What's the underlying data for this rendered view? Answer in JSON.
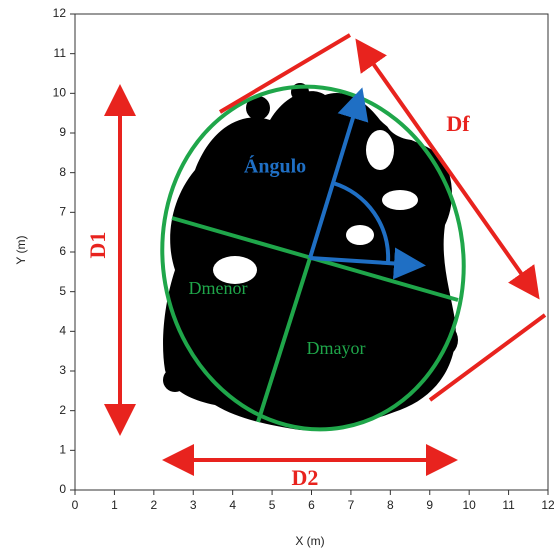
{
  "chart_data": {
    "type": "annotated-plot",
    "x_label": "X (m)",
    "y_label": "Y (m)",
    "xlim": [
      0,
      12
    ],
    "ylim": [
      0,
      12
    ],
    "xticks": [
      0,
      1,
      2,
      3,
      4,
      5,
      6,
      7,
      8,
      9,
      10,
      11,
      12
    ],
    "yticks": [
      0,
      1,
      2,
      3,
      4,
      5,
      6,
      7,
      8,
      9,
      10,
      11,
      12
    ],
    "annotations": {
      "d1": "D1",
      "d2": "D2",
      "df": "Df",
      "angle": "Ángulo",
      "minor": "Dmenor",
      "major": "Dmayor"
    }
  }
}
